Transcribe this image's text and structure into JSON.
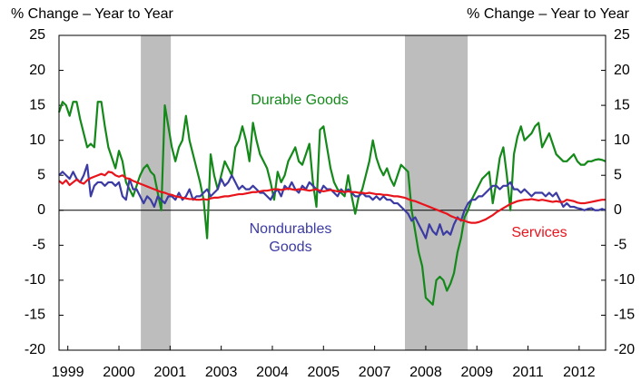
{
  "chart_data": {
    "type": "line",
    "ylabel": "% Change – Year to Year",
    "y2label": "% Change – Year to Year",
    "annotations": [
      "Durable Goods",
      "Nondurables",
      "Goods",
      "Services"
    ],
    "xlim": [
      0,
      155
    ],
    "xticks": [
      {
        "value": 2.5,
        "label": "1999"
      },
      {
        "value": 17,
        "label": "2000"
      },
      {
        "value": 31.5,
        "label": "2001"
      },
      {
        "value": 46,
        "label": "2003"
      },
      {
        "value": 60.5,
        "label": "2004"
      },
      {
        "value": 75,
        "label": "2005"
      },
      {
        "value": 89.5,
        "label": "2007"
      },
      {
        "value": 104,
        "label": "2008"
      },
      {
        "value": 118.5,
        "label": "2009"
      },
      {
        "value": 133,
        "label": "2011"
      },
      {
        "value": 147.5,
        "label": "2012"
      }
    ],
    "ylim": [
      -20,
      25
    ],
    "yticks": [
      -20,
      -15,
      -10,
      -5,
      0,
      5,
      10,
      15,
      20,
      25
    ],
    "y2lim": [
      -20,
      25
    ],
    "y2ticks": [
      -20,
      -15,
      -10,
      -5,
      0,
      5,
      10,
      15,
      20,
      25
    ],
    "shaded_ranges": [
      [
        23.2,
        31.7
      ],
      [
        98.1,
        115.9
      ]
    ],
    "shade_color": "#bdbdbd",
    "series": [
      {
        "name": "Durable Goods",
        "color": "#14891a",
        "values": [
          14,
          15.5,
          15,
          13.5,
          15.5,
          15.5,
          13,
          11,
          9,
          9.5,
          9,
          15.5,
          15.5,
          12,
          9,
          7.5,
          6,
          8.5,
          7,
          4,
          3,
          2,
          3.5,
          5,
          6,
          6.5,
          5.5,
          5,
          2.5,
          0,
          15,
          12,
          9,
          7,
          9,
          10,
          13.5,
          10,
          8,
          6,
          4,
          1.5,
          -4,
          8,
          5,
          3,
          5,
          7,
          6,
          5,
          9,
          10,
          12,
          10,
          7,
          12.5,
          10,
          8,
          7,
          6,
          4,
          1.5,
          5.5,
          4,
          5,
          7,
          8,
          9,
          7,
          6.5,
          8,
          9.5,
          4,
          0.5,
          11.5,
          12,
          9,
          6,
          4,
          3,
          2.5,
          2,
          5,
          2,
          -0.5,
          2,
          3,
          5,
          7,
          10,
          7.5,
          6,
          5,
          6,
          4.5,
          3.5,
          5,
          6.5,
          6,
          5.5,
          0,
          -3,
          -6,
          -8,
          -12.5,
          -13,
          -13.5,
          -10,
          -9.5,
          -10,
          -11.5,
          -10.5,
          -9,
          -6,
          -4,
          -1,
          0,
          1.5,
          2.5,
          3.5,
          4.5,
          5,
          5.5,
          1,
          4,
          7.5,
          9,
          5,
          0,
          8,
          10.5,
          12,
          10,
          10.5,
          11,
          12,
          12.5,
          9,
          10,
          11,
          9.5,
          8,
          7.5,
          7,
          7,
          7.5,
          8,
          7,
          6.5,
          6.5,
          7,
          7,
          7.2,
          7.3,
          7.2,
          7
        ]
      },
      {
        "name": "Nondurables Goods",
        "color": "#3b3ba3",
        "values": [
          5,
          5.5,
          5,
          4.5,
          5.5,
          4.5,
          4,
          5,
          6.5,
          2,
          3.5,
          4,
          4,
          3.5,
          4,
          4,
          3.5,
          4,
          2,
          1.5,
          4.5,
          3,
          3,
          2,
          1,
          2,
          1.5,
          0.5,
          2,
          1.5,
          1,
          2,
          2,
          1.5,
          2.5,
          1.5,
          2,
          3,
          1.5,
          2,
          2,
          2.5,
          3,
          2,
          2.5,
          3,
          4.5,
          3.5,
          4,
          5,
          4,
          3,
          3.5,
          3,
          3,
          3.5,
          3,
          2.5,
          2.5,
          2,
          1.5,
          2.5,
          3,
          2,
          3.5,
          3,
          4,
          3,
          2.5,
          3.5,
          3,
          4,
          3.5,
          3,
          2.5,
          3.5,
          3,
          3,
          2.5,
          2,
          3,
          2.5,
          3,
          2.5,
          2,
          2,
          2.5,
          2,
          2,
          1.5,
          2,
          1.5,
          2,
          1.5,
          1.5,
          1,
          1,
          0.5,
          0,
          -0.5,
          -1.5,
          -1,
          -2,
          -3,
          -4,
          -2,
          -3,
          -3.5,
          -2,
          -3.5,
          -3,
          -3.5,
          -2,
          -1,
          -1.5,
          0,
          1,
          1.5,
          1.5,
          2,
          2,
          2.5,
          3,
          3.5,
          3.5,
          3,
          3.5,
          3.5,
          4,
          3,
          3,
          2.5,
          3,
          2.5,
          2,
          2.5,
          2.5,
          2.5,
          2,
          2.5,
          2,
          2.5,
          1.5,
          0.5,
          1,
          0.5,
          0.5,
          0.3,
          0.2,
          0,
          0.2,
          0.3,
          0,
          0,
          0.2,
          0
        ]
      },
      {
        "name": "Services",
        "color": "#e8141c",
        "values": [
          4.2,
          3.8,
          4.3,
          3.6,
          4,
          4.4,
          4,
          3.8,
          4.3,
          4.6,
          4.8,
          5,
          5.2,
          5,
          5.5,
          5.4,
          5,
          4.8,
          5,
          4.6,
          4.5,
          4.2,
          4,
          3.8,
          3.6,
          3.4,
          3.2,
          3,
          2.8,
          2.6,
          2.5,
          2.3,
          2.2,
          2,
          1.9,
          1.8,
          1.7,
          1.6,
          1.6,
          1.5,
          1.5,
          1.6,
          1.5,
          1.7,
          1.8,
          1.8,
          1.9,
          2,
          2,
          2.1,
          2.2,
          2.3,
          2.3,
          2.4,
          2.5,
          2.6,
          2.6,
          2.7,
          2.8,
          2.8,
          2.9,
          3,
          3,
          2.9,
          3,
          3.1,
          3,
          2.9,
          3,
          3,
          2.9,
          2.8,
          2.9,
          3,
          2.8,
          2.7,
          2.8,
          2.9,
          2.8,
          2.7,
          2.7,
          2.6,
          2.7,
          2.6,
          2.6,
          2.5,
          2.5,
          2.4,
          2.5,
          2.4,
          2.3,
          2.3,
          2.2,
          2.2,
          2.1,
          2,
          2,
          1.9,
          1.8,
          1.6,
          1.4,
          1.3,
          1.1,
          0.9,
          0.7,
          0.5,
          0.3,
          0.1,
          -0.1,
          -0.3,
          -0.5,
          -0.8,
          -1,
          -1.2,
          -1.4,
          -1.5,
          -1.7,
          -1.8,
          -1.8,
          -1.7,
          -1.5,
          -1.3,
          -1,
          -0.7,
          -0.3,
          0,
          0.3,
          0.6,
          0.9,
          1.1,
          1.3,
          1.4,
          1.5,
          1.5,
          1.6,
          1.5,
          1.4,
          1.5,
          1.4,
          1.3,
          1.2,
          1.3,
          1.2,
          1.2,
          1.5,
          1.4,
          1.3,
          1.1,
          1,
          1,
          1.1,
          1.2,
          1.3,
          1.4,
          1.5,
          1.5
        ]
      }
    ]
  }
}
